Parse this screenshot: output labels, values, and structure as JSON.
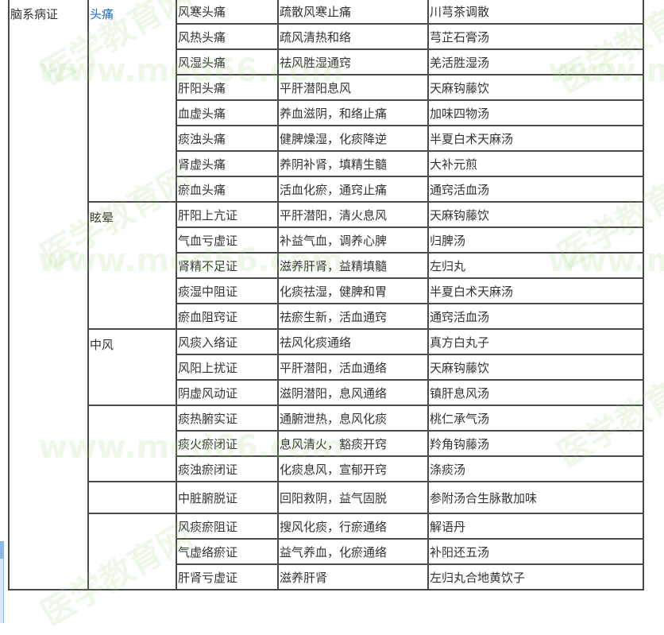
{
  "table": {
    "category": "脑系病证",
    "groups": [
      {
        "name": "头痛",
        "is_link": true,
        "rows": [
          [
            "风寒头痛",
            "疏散风寒止痛",
            "川芎茶调散"
          ],
          [
            "风热头痛",
            "疏风清热和络",
            "芎芷石膏汤"
          ],
          [
            "风湿头痛",
            "祛风胜湿通窍",
            "羌活胜湿汤"
          ],
          [
            "肝阳头痛",
            "平肝潜阳息风",
            "天麻钩藤饮"
          ],
          [
            "血虚头痛",
            "养血滋阴，和络止痛",
            "加味四物汤"
          ],
          [
            "痰浊头痛",
            "健脾燥湿，化痰降逆",
            "半夏白术天麻汤"
          ],
          [
            "肾虚头痛",
            "养阴补肾，填精生髓",
            "大补元煎"
          ],
          [
            "瘀血头痛",
            "活血化瘀，通窍止痛",
            "通窍活血汤"
          ]
        ]
      },
      {
        "name": "眩晕",
        "rows": [
          [
            "肝阳上亢证",
            "平肝潜阳，清火息风",
            "天麻钩藤饮"
          ],
          [
            "气血亏虚证",
            "补益气血，调养心脾",
            "归脾汤"
          ],
          [
            "肾精不足证",
            "滋养肝肾，益精填髓",
            "左归丸"
          ],
          [
            "痰湿中阻证",
            "化痰祛湿，健脾和胃",
            "半夏白术天麻汤"
          ],
          [
            "瘀血阻窍证",
            "祛瘀生新，活血通窍",
            "通窍活血汤"
          ]
        ]
      },
      {
        "name": "中风",
        "rows": [
          [
            "风痰入络证",
            "祛风化痰通络",
            "真方白丸子"
          ],
          [
            "风阳上扰证",
            "平肝潜阳，活血通络",
            "天麻钩藤饮"
          ],
          [
            "阴虚风动证",
            "滋阴潜阳，息风通络",
            "镇肝息风汤"
          ]
        ]
      },
      {
        "name": "",
        "rows": [
          [
            "痰热腑实证",
            "通腑泄热，息风化痰",
            "桃仁承气汤"
          ],
          [
            "痰火瘀闭证",
            "息风清火，豁痰开窍",
            "羚角钩藤汤"
          ],
          [
            "痰浊瘀闭证",
            "化痰息风，宣郁开窍",
            "涤痰汤"
          ]
        ]
      },
      {
        "name": "",
        "rows": [
          [
            "中脏腑脱证",
            "回阳救阴，益气固脱",
            "参附汤合生脉散加味"
          ]
        ]
      },
      {
        "name": "",
        "rows": [
          [
            "风痰瘀阻证",
            "搜风化痰，行瘀通络",
            "解语丹"
          ],
          [
            "气虚络瘀证",
            "益气养血，化瘀通络",
            "补阳还五汤"
          ],
          [
            "肝肾亏虚证",
            "滋养肝肾",
            "左归丸合地黄饮子"
          ]
        ]
      }
    ]
  },
  "watermark": {
    "logo": "医学教育网",
    "url": "www.med66.com"
  },
  "colors": {
    "link": "#1a6fd6",
    "border": "#4a4a4a",
    "text": "#333333"
  }
}
